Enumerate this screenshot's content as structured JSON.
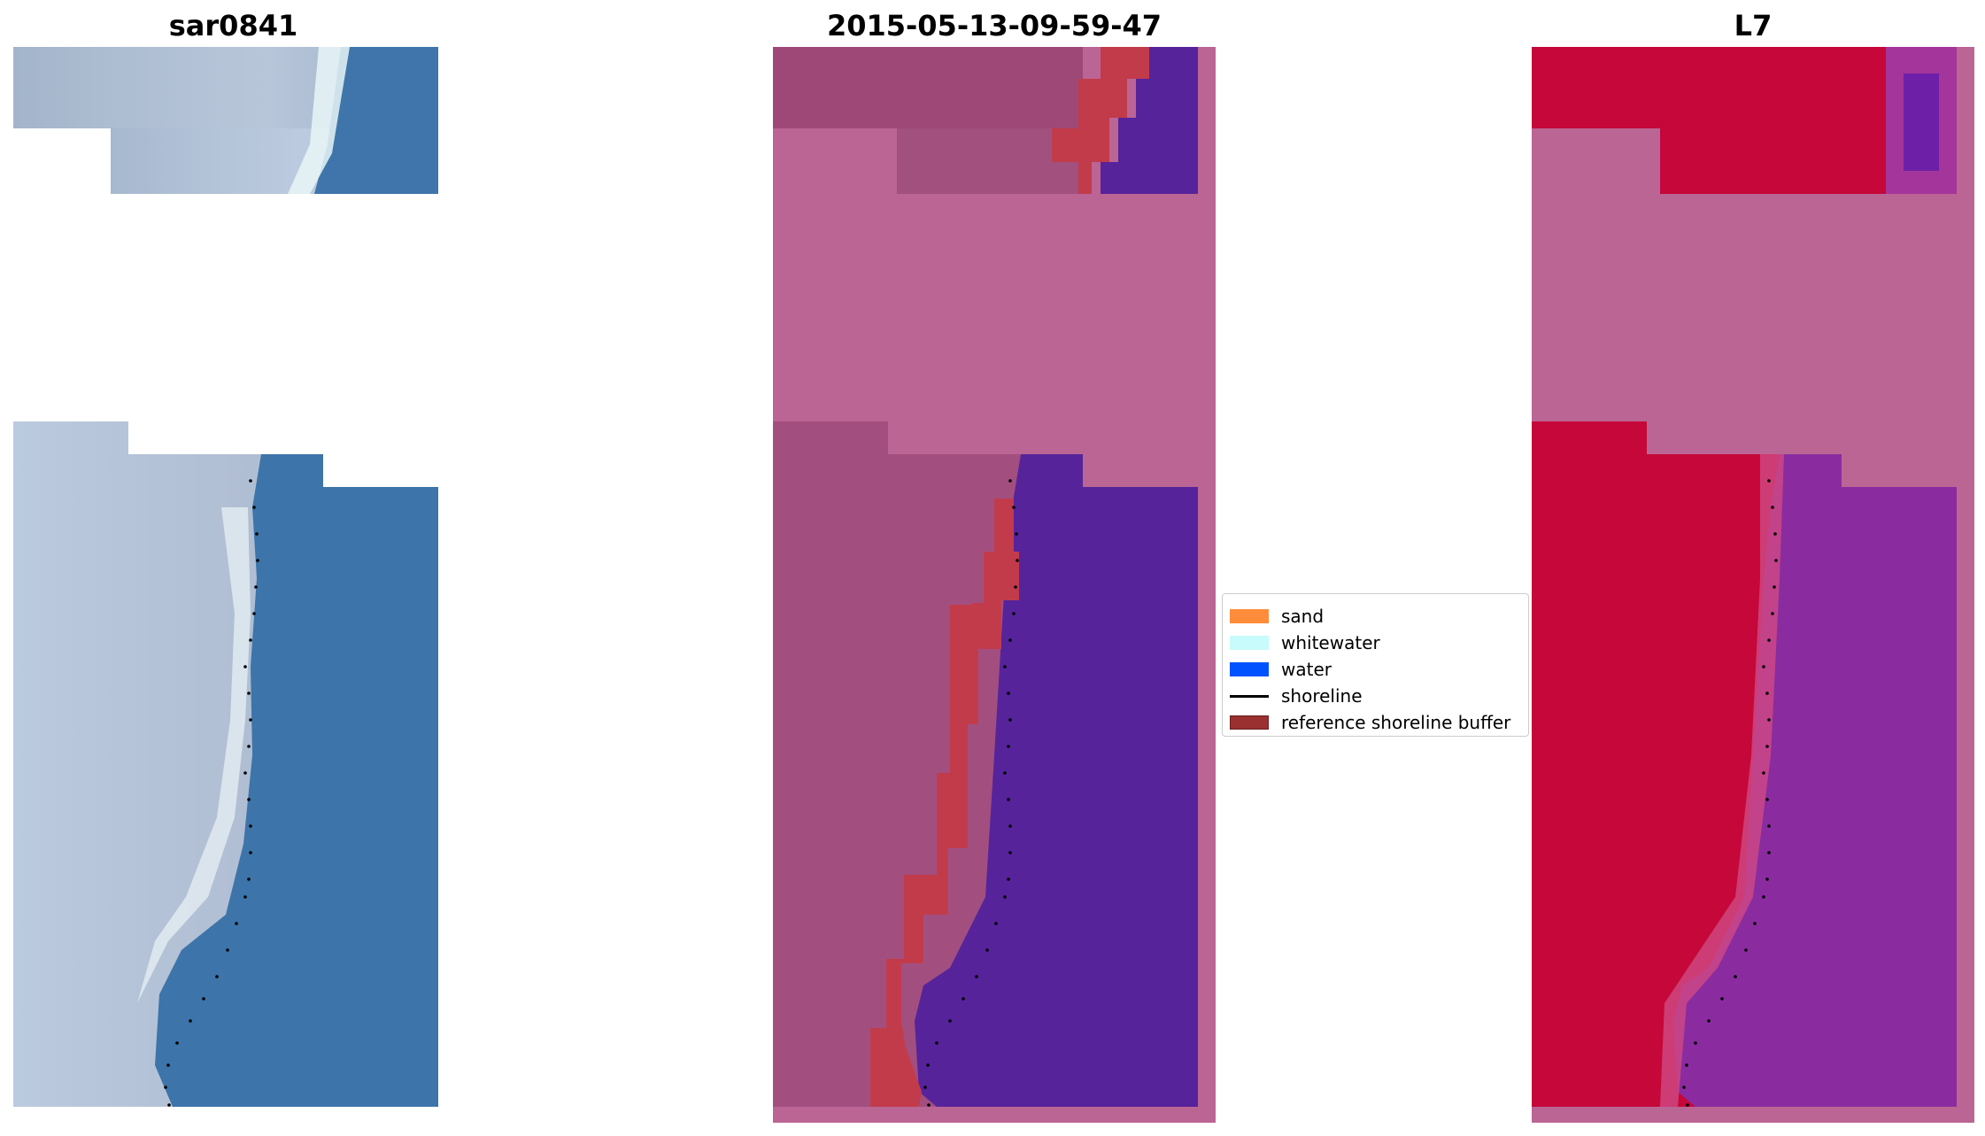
{
  "panels": [
    {
      "title": "sar0841"
    },
    {
      "title": "2015-05-13-09-59-47"
    },
    {
      "title": "L7"
    }
  ],
  "legend": {
    "items": [
      {
        "label": "sand",
        "color": "#ff8c3a"
      },
      {
        "label": "whitewater",
        "color": "#c8fbfb"
      },
      {
        "label": "water",
        "color": "#0052ff"
      },
      {
        "label": "shoreline",
        "color": "#000000"
      },
      {
        "label": "reference shoreline buffer",
        "color": "#9a3030"
      }
    ]
  }
}
